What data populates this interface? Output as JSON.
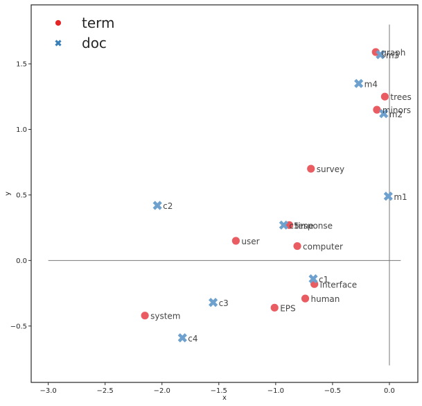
{
  "chart_data": {
    "type": "scatter",
    "xlabel": "x",
    "ylabel": "y",
    "xlim": [
      -3.15,
      0.25
    ],
    "ylim": [
      -0.93,
      1.95
    ],
    "xticks": [
      -3.0,
      -2.5,
      -2.0,
      -1.5,
      -1.0,
      -0.5,
      0.0
    ],
    "xtick_labels": [
      "−3.0",
      "−2.5",
      "−2.0",
      "−1.5",
      "−1.0",
      "−0.5",
      "0.0"
    ],
    "yticks": [
      -0.5,
      0.0,
      0.5,
      1.0,
      1.5
    ],
    "ytick_labels": [
      "−0.5",
      "0.0",
      "0.5",
      "1.0",
      "1.5"
    ],
    "grid": false,
    "legend_position": "top-left",
    "reference_lines": {
      "horizontal": {
        "y": 0.0,
        "x_from": -3.0,
        "x_to": 0.1
      },
      "vertical": {
        "x": 0.0,
        "y_from": -0.8,
        "y_to": 1.8
      }
    },
    "series": [
      {
        "name": "term",
        "marker": "circle",
        "color": "#e8545a",
        "legend_color": "#e41a1c",
        "points": [
          {
            "label": "graph",
            "x": -0.12,
            "y": 1.59
          },
          {
            "label": "trees",
            "x": -0.04,
            "y": 1.25
          },
          {
            "label": "minors",
            "x": -0.11,
            "y": 1.15
          },
          {
            "label": "survey",
            "x": -0.69,
            "y": 0.7
          },
          {
            "label": "time",
            "x": -0.88,
            "y": 0.27
          },
          {
            "label": "response",
            "x": -0.88,
            "y": 0.27
          },
          {
            "label": "user",
            "x": -1.35,
            "y": 0.15
          },
          {
            "label": "computer",
            "x": -0.81,
            "y": 0.11
          },
          {
            "label": "interface",
            "x": -0.66,
            "y": -0.18
          },
          {
            "label": "human",
            "x": -0.74,
            "y": -0.29
          },
          {
            "label": "EPS",
            "x": -1.01,
            "y": -0.36
          },
          {
            "label": "system",
            "x": -2.15,
            "y": -0.42
          }
        ]
      },
      {
        "name": "doc",
        "marker": "x",
        "color": "#6fa1cf",
        "legend_color": "#377eb8",
        "points": [
          {
            "label": "m3",
            "x": -0.08,
            "y": 1.57
          },
          {
            "label": "m4",
            "x": -0.27,
            "y": 1.35
          },
          {
            "label": "m2",
            "x": -0.05,
            "y": 1.12
          },
          {
            "label": "m1",
            "x": -0.01,
            "y": 0.49
          },
          {
            "label": "c2",
            "x": -2.04,
            "y": 0.42
          },
          {
            "label": "c5",
            "x": -0.93,
            "y": 0.27
          },
          {
            "label": "c1",
            "x": -0.67,
            "y": -0.14
          },
          {
            "label": "c3",
            "x": -1.55,
            "y": -0.32
          },
          {
            "label": "c4",
            "x": -1.82,
            "y": -0.59
          }
        ]
      }
    ]
  }
}
